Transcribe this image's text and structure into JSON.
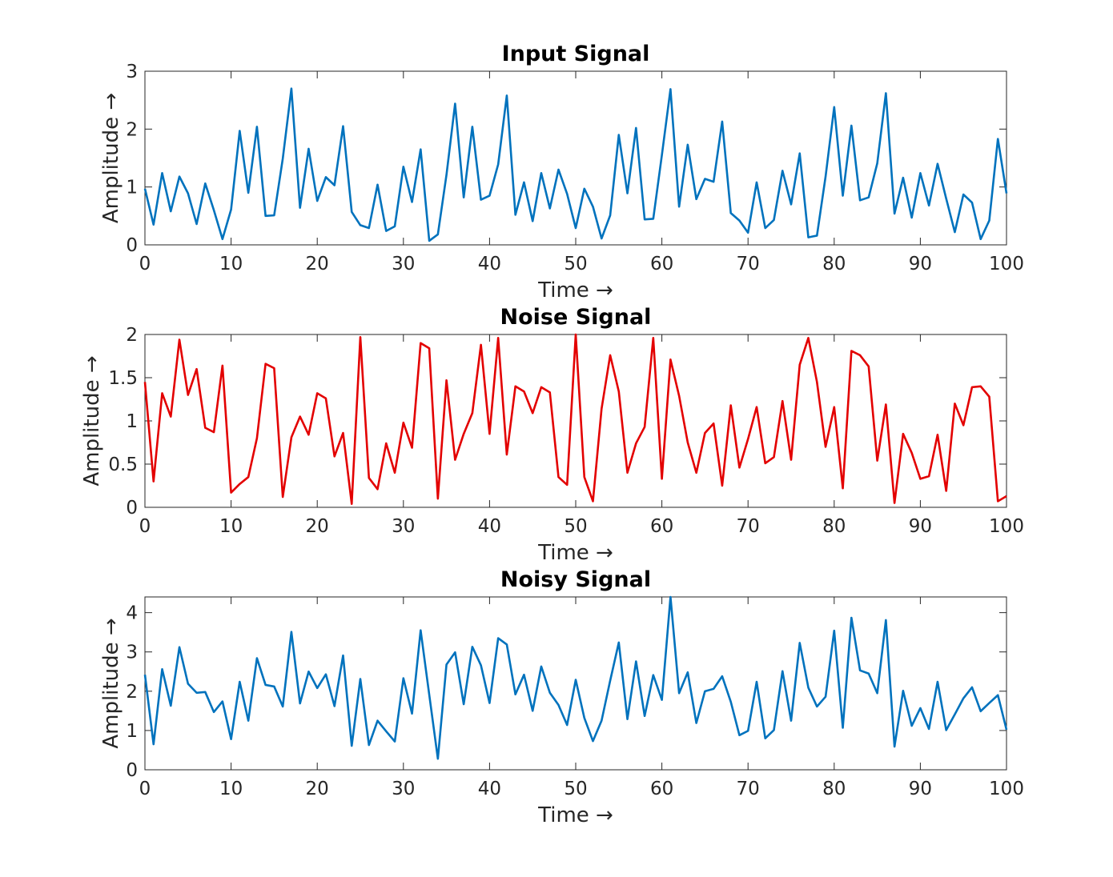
{
  "chart_data": [
    {
      "type": "line",
      "title": "Input Signal",
      "xlabel": "Time →",
      "ylabel": "Amplitude →",
      "xlim": [
        0,
        100
      ],
      "ylim": [
        0,
        3
      ],
      "xticks": [
        0,
        10,
        20,
        30,
        40,
        50,
        60,
        70,
        80,
        90,
        100
      ],
      "yticks": [
        0,
        1,
        2,
        3
      ],
      "grid": false,
      "color": "#0072BD",
      "series": [
        {
          "values": [
            0.97,
            0.35,
            1.24,
            0.58,
            1.18,
            0.89,
            0.36,
            1.06,
            0.6,
            0.1,
            0.61,
            1.97,
            0.9,
            2.04,
            0.5,
            0.51,
            1.49,
            2.7,
            0.64,
            1.66,
            0.76,
            1.17,
            1.03,
            2.05,
            0.57,
            0.34,
            0.29,
            1.04,
            0.24,
            0.32,
            1.35,
            0.74,
            1.65,
            0.07,
            0.18,
            1.21,
            2.44,
            0.82,
            2.04,
            0.78,
            0.85,
            1.39,
            2.58,
            0.52,
            1.08,
            0.41,
            1.24,
            0.63,
            1.3,
            0.88,
            0.29,
            0.97,
            0.66,
            0.11,
            0.51,
            1.9,
            0.89,
            2.02,
            0.44,
            0.45,
            1.55,
            2.69,
            0.66,
            1.73,
            0.79,
            1.14,
            1.09,
            2.13,
            0.55,
            0.42,
            0.21,
            1.08,
            0.29,
            0.43,
            1.28,
            0.7,
            1.58,
            0.13,
            0.16,
            1.18,
            2.38,
            0.85,
            2.06,
            0.77,
            0.82,
            1.41,
            2.62,
            0.54,
            1.16,
            0.47,
            1.24,
            0.68,
            1.4,
            0.8,
            0.22,
            0.87,
            0.73,
            0.1,
            0.42,
            1.83,
            0.89
          ]
        }
      ]
    },
    {
      "type": "line",
      "title": "Noise Signal",
      "xlabel": "Time →",
      "ylabel": "Amplitude →",
      "xlim": [
        0,
        100
      ],
      "ylim": [
        0,
        2
      ],
      "xticks": [
        0,
        10,
        20,
        30,
        40,
        50,
        60,
        70,
        80,
        90,
        100
      ],
      "yticks": [
        0,
        0.5,
        1,
        1.5,
        2
      ],
      "grid": false,
      "color": "#E30000",
      "series": [
        {
          "values": [
            1.45,
            0.3,
            1.32,
            1.05,
            1.94,
            1.3,
            1.6,
            0.92,
            0.87,
            1.64,
            0.17,
            0.27,
            0.35,
            0.8,
            1.66,
            1.61,
            0.12,
            0.81,
            1.05,
            0.84,
            1.32,
            1.26,
            0.59,
            0.86,
            0.04,
            1.97,
            0.34,
            0.21,
            0.74,
            0.4,
            0.98,
            0.69,
            1.9,
            1.84,
            0.1,
            1.47,
            0.55,
            0.85,
            1.09,
            1.88,
            0.85,
            1.96,
            0.61,
            1.4,
            1.34,
            1.09,
            1.39,
            1.33,
            0.35,
            0.26,
            2.0,
            0.35,
            0.07,
            1.14,
            1.76,
            1.34,
            0.4,
            0.74,
            0.93,
            1.96,
            0.33,
            1.71,
            1.29,
            0.75,
            0.4,
            0.86,
            0.97,
            0.25,
            1.18,
            0.46,
            0.79,
            1.16,
            0.51,
            0.58,
            1.23,
            0.55,
            1.65,
            1.96,
            1.45,
            0.7,
            1.16,
            0.22,
            1.81,
            1.76,
            1.63,
            0.54,
            1.19,
            0.05,
            0.85,
            0.63,
            0.33,
            0.36,
            0.84,
            0.19,
            1.2,
            0.95,
            1.39,
            1.4,
            1.28,
            0.07,
            0.13
          ]
        }
      ]
    },
    {
      "type": "line",
      "title": "Noisy Signal",
      "xlabel": "Time →",
      "ylabel": "Amplitude →",
      "xlim": [
        0,
        100
      ],
      "ylim": [
        0,
        4.4
      ],
      "xticks": [
        0,
        10,
        20,
        30,
        40,
        50,
        60,
        70,
        80,
        90,
        100
      ],
      "yticks": [
        0,
        1,
        2,
        3,
        4
      ],
      "grid": false,
      "color": "#0072BD",
      "series": [
        {
          "values": [
            2.42,
            0.65,
            2.56,
            1.63,
            3.12,
            2.19,
            1.96,
            1.98,
            1.47,
            1.74,
            0.78,
            2.24,
            1.25,
            2.84,
            2.16,
            2.12,
            1.61,
            3.51,
            1.69,
            2.5,
            2.08,
            2.43,
            1.62,
            2.91,
            0.61,
            2.31,
            0.63,
            1.25,
            0.98,
            0.72,
            2.33,
            1.43,
            3.55,
            1.91,
            0.28,
            2.68,
            2.99,
            1.67,
            3.13,
            2.66,
            1.7,
            3.35,
            3.19,
            1.92,
            2.42,
            1.5,
            2.63,
            1.96,
            1.65,
            1.14,
            2.29,
            1.32,
            0.73,
            1.25,
            2.27,
            3.24,
            1.29,
            2.76,
            1.37,
            2.41,
            1.78,
            4.4,
            1.95,
            2.48,
            1.19,
            2.0,
            2.06,
            2.38,
            1.73,
            0.88,
            0.99,
            2.24,
            0.8,
            1.01,
            2.51,
            1.25,
            3.23,
            2.09,
            1.61,
            1.86,
            3.54,
            1.07,
            3.87,
            2.53,
            2.45,
            1.95,
            3.81,
            0.59,
            2.01,
            1.12,
            1.57,
            1.04,
            2.24,
            1.01,
            1.41,
            1.82,
            2.1,
            1.49,
            1.7,
            1.9,
            1.02
          ]
        }
      ]
    }
  ]
}
